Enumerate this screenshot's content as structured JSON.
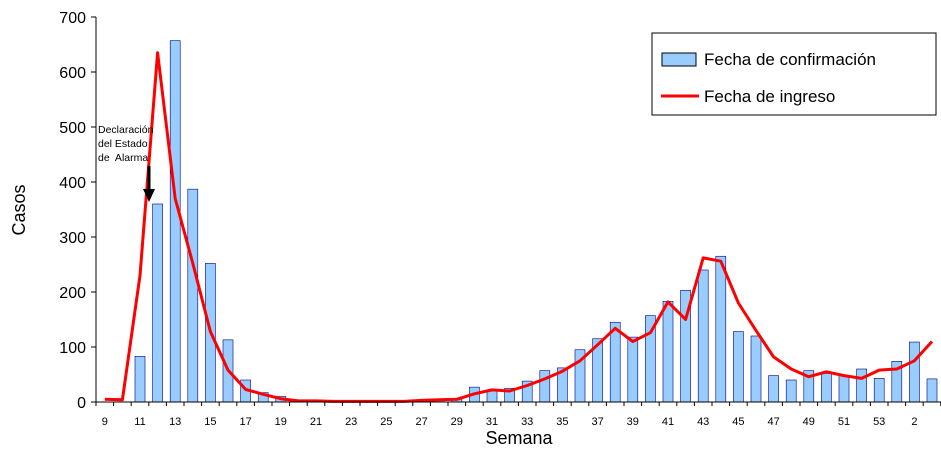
{
  "chart_data": {
    "type": "bar",
    "xlabel": "Semana",
    "ylabel": "Casos",
    "ylim": [
      0,
      700
    ],
    "yticks": [
      0,
      100,
      200,
      300,
      400,
      500,
      600,
      700
    ],
    "grid": false,
    "legend_position": "top-right",
    "categories": [
      "9",
      "10",
      "11",
      "12",
      "13",
      "14",
      "15",
      "16",
      "17",
      "18",
      "19",
      "20",
      "21",
      "22",
      "23",
      "24",
      "25",
      "26",
      "27",
      "28",
      "29",
      "30",
      "31",
      "32",
      "33",
      "34",
      "35",
      "36",
      "37",
      "38",
      "39",
      "40",
      "41",
      "42",
      "43",
      "44",
      "45",
      "46",
      "47",
      "48",
      "49",
      "50",
      "51",
      "52",
      "53",
      "1",
      "2",
      "3"
    ],
    "x_tick_labels": [
      "9",
      "11",
      "13",
      "15",
      "17",
      "19",
      "21",
      "23",
      "25",
      "27",
      "29",
      "31",
      "33",
      "35",
      "37",
      "39",
      "41",
      "43",
      "45",
      "47",
      "49",
      "51",
      "53",
      "2"
    ],
    "series": [
      {
        "name": "Fecha de confirmación",
        "kind": "bar",
        "color": "#99ccff",
        "values": [
          0,
          0,
          83,
          360,
          657,
          387,
          252,
          113,
          40,
          17,
          10,
          3,
          2,
          2,
          1,
          1,
          1,
          1,
          2,
          3,
          5,
          27,
          22,
          25,
          38,
          57,
          62,
          95,
          115,
          145,
          118,
          157,
          183,
          203,
          240,
          265,
          128,
          120,
          48,
          40,
          57,
          52,
          48,
          60,
          43,
          74,
          109,
          42
        ]
      },
      {
        "name": "Fecha de ingreso",
        "kind": "line",
        "color": "#ff0000",
        "values": [
          5,
          4,
          230,
          635,
          370,
          252,
          128,
          58,
          23,
          14,
          6,
          2,
          2,
          1,
          1,
          1,
          1,
          1,
          3,
          4,
          5,
          15,
          22,
          20,
          30,
          42,
          56,
          75,
          104,
          134,
          110,
          126,
          182,
          150,
          262,
          256,
          180,
          130,
          82,
          60,
          46,
          55,
          48,
          43,
          58,
          60,
          75,
          110
        ]
      }
    ],
    "annotation": {
      "lines": [
        "Declaración",
        "del Estado",
        "de  Alarma"
      ],
      "at_category": "12"
    }
  }
}
